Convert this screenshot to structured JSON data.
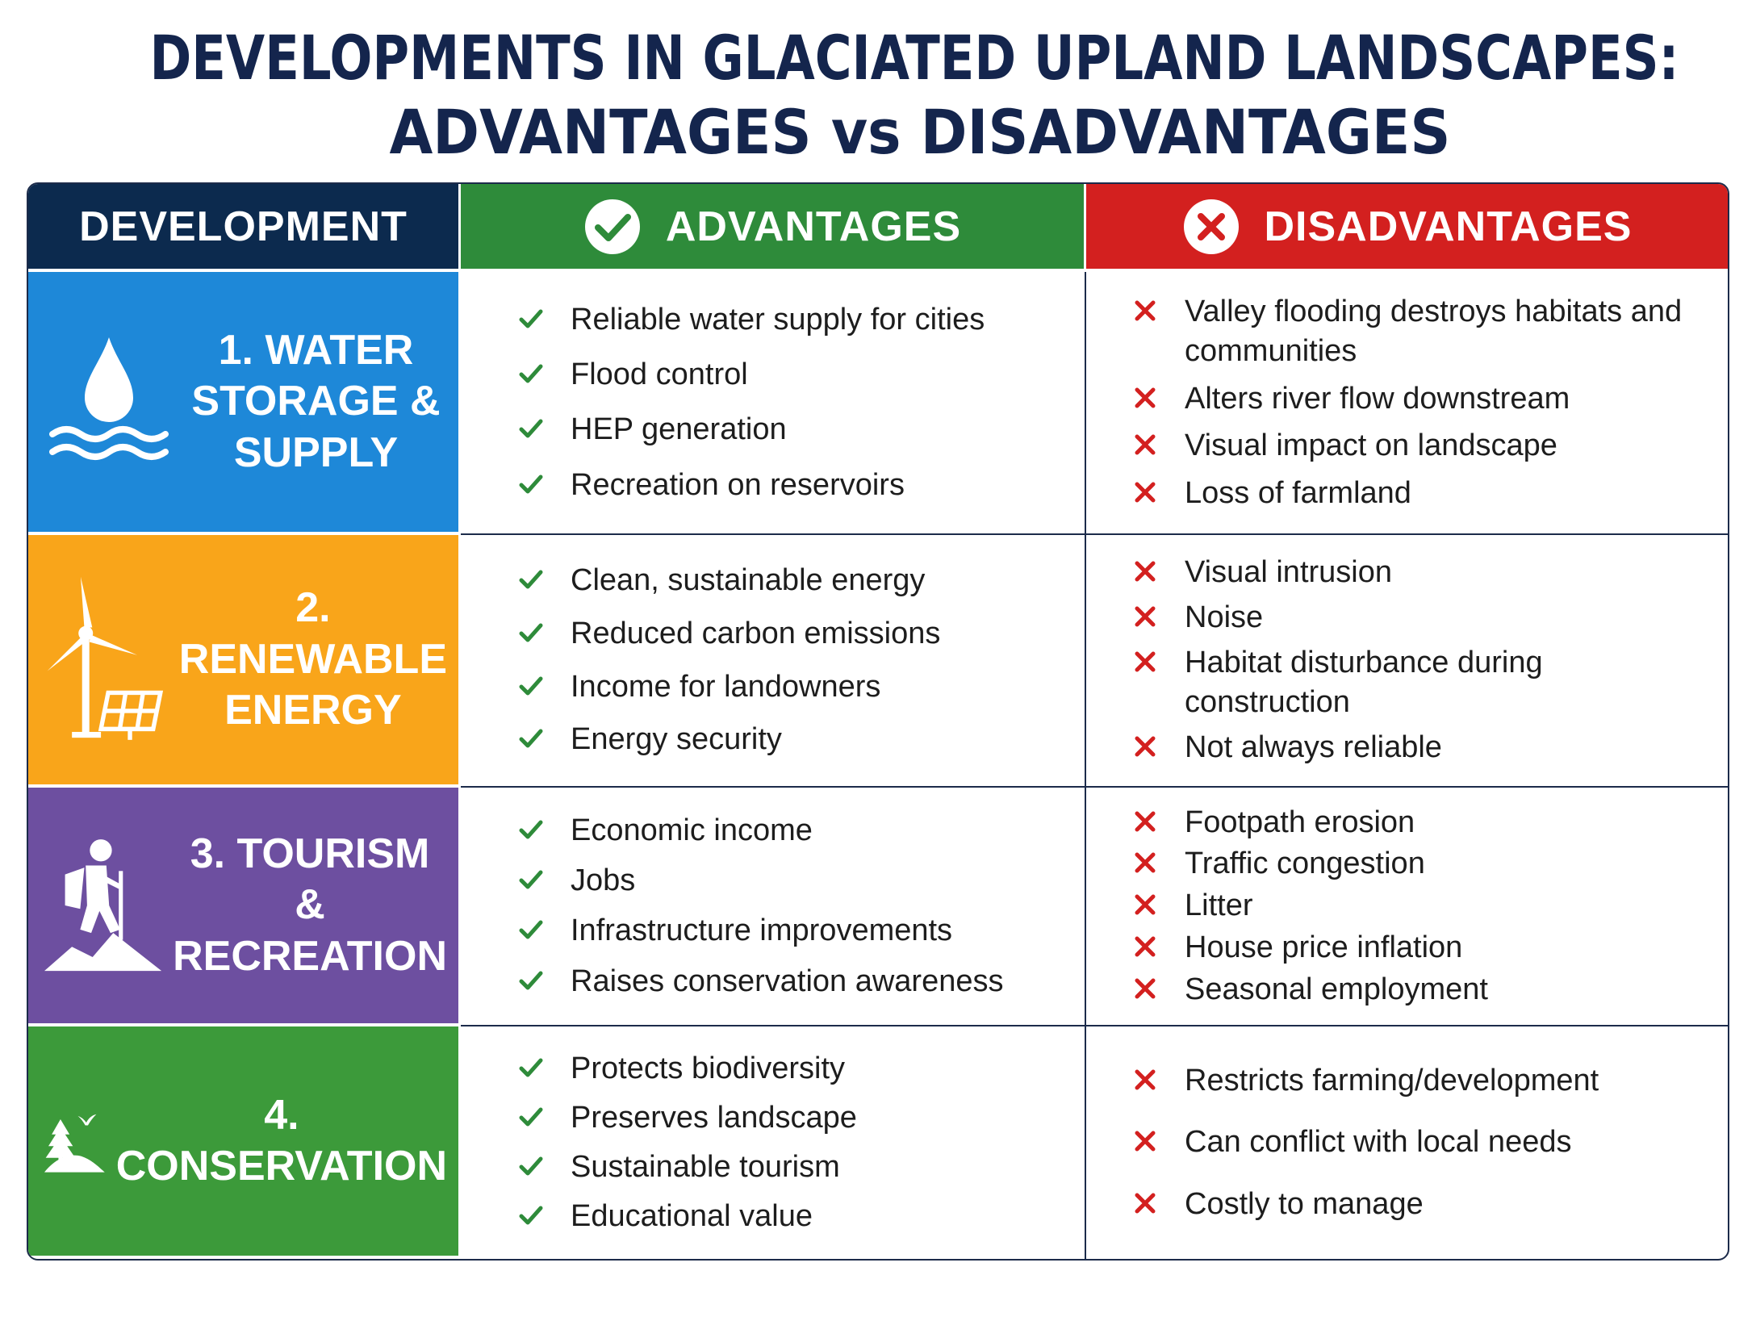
{
  "title": {
    "line1": "DEVELOPMENTS IN GLACIATED UPLAND LANDSCAPES:",
    "line2": "ADVANTAGES vs DISADVANTAGES"
  },
  "table": {
    "headers": [
      "DEVELOPMENT",
      "ADVANTAGES",
      "DISADVANTAGES"
    ],
    "rows": [
      {
        "development": "1. WATER STORAGE & SUPPLY",
        "advantages": [
          "Reliable water supply for cities",
          "Flood control",
          "HEP generation",
          "Recreation on reservoirs"
        ],
        "disadvantages": [
          "Valley flooding destroys habitats and communities",
          "Alters river flow downstream",
          "Visual impact on landscape",
          "Loss of farmland"
        ]
      },
      {
        "development": "2. RENEWABLE ENERGY",
        "advantages": [
          "Clean, sustainable energy",
          "Reduced carbon emissions",
          "Income for landowners",
          "Energy security"
        ],
        "disadvantages": [
          "Visual intrusion",
          "Noise",
          "Habitat disturbance during construction",
          "Not always reliable"
        ]
      },
      {
        "development": "3. TOURISM & RECREATION",
        "advantages": [
          "Economic income",
          "Jobs",
          "Infrastructure improvements",
          "Raises conservation awareness"
        ],
        "disadvantages": [
          "Footpath erosion",
          "Traffic congestion",
          "Litter",
          "House price inflation",
          "Seasonal employment"
        ]
      },
      {
        "development": "4. CONSERVATION",
        "advantages": [
          "Protects biodiversity",
          "Preserves landscape",
          "Sustainable tourism",
          "Educational value"
        ],
        "disadvantages": [
          "Restricts farming/development",
          "Can conflict with local needs",
          "Costly to manage"
        ]
      }
    ]
  }
}
